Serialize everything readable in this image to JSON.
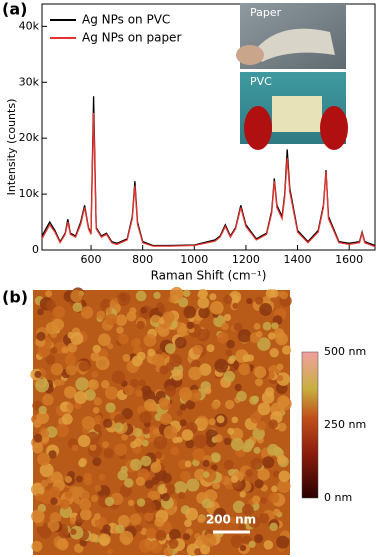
{
  "panel_labels": [
    "(a)",
    "(b)"
  ],
  "chart_data": {
    "type": "line",
    "x_label": "Raman Shift (cm⁻¹)",
    "y_label": "Intensity (counts)",
    "x": [
      410,
      440,
      460,
      480,
      500,
      510,
      520,
      540,
      560,
      575,
      590,
      600,
      610,
      620,
      640,
      660,
      680,
      700,
      740,
      760,
      770,
      780,
      800,
      840,
      900,
      1000,
      1080,
      1100,
      1120,
      1140,
      1160,
      1180,
      1200,
      1240,
      1280,
      1300,
      1310,
      1320,
      1340,
      1350,
      1360,
      1370,
      1400,
      1440,
      1480,
      1500,
      1510,
      1520,
      1560,
      1600,
      1640,
      1650,
      1660,
      1700
    ],
    "series": [
      {
        "name": "Ag NPs on PVC",
        "color": "#000000",
        "values": [
          2500,
          5000,
          3500,
          1500,
          3000,
          5500,
          3000,
          2500,
          5000,
          8000,
          4000,
          3000,
          27500,
          4000,
          2500,
          3000,
          1500,
          1200,
          2000,
          6000,
          12300,
          5000,
          1500,
          800,
          800,
          900,
          1800,
          2500,
          4500,
          2500,
          4000,
          8000,
          4500,
          2000,
          3000,
          7000,
          12800,
          8000,
          6000,
          10000,
          18000,
          11000,
          3500,
          1500,
          3500,
          8000,
          14300,
          6000,
          1500,
          1200,
          1500,
          3200,
          1500,
          800
        ]
      },
      {
        "name": "Ag NPs on paper",
        "color": "#e8332e",
        "values": [
          2000,
          4500,
          3200,
          1300,
          2800,
          5000,
          2800,
          2300,
          4600,
          7600,
          3800,
          2800,
          24500,
          3800,
          2300,
          2800,
          1300,
          1000,
          1800,
          5600,
          11500,
          4600,
          1300,
          700,
          700,
          800,
          1600,
          2300,
          4200,
          2300,
          3800,
          7600,
          4200,
          1800,
          2800,
          6600,
          12300,
          7600,
          5600,
          9400,
          16500,
          10400,
          3200,
          1300,
          3200,
          7600,
          14000,
          5600,
          1300,
          1000,
          1300,
          3000,
          1300,
          600
        ]
      }
    ],
    "xlim": [
      410,
      1700
    ],
    "xticks": [
      600,
      800,
      1000,
      1200,
      1400,
      1600
    ],
    "ylim": [
      0,
      44000
    ],
    "yticks": [
      0,
      {
        "value": 10000,
        "label": "10k"
      },
      {
        "value": 20000,
        "label": "20k"
      },
      {
        "value": 30000,
        "label": "30k"
      },
      {
        "value": 40000,
        "label": "40k"
      }
    ],
    "legend": "top-left"
  },
  "insets": [
    "Paper",
    "PVC"
  ],
  "afm": {
    "scale_bar": "200 nm",
    "colorbar": {
      "range": [
        0,
        500
      ],
      "ticks": [
        {
          "value": 0,
          "label": "0 nm"
        },
        {
          "value": 250,
          "label": "250 nm"
        },
        {
          "value": 500,
          "label": "500 nm"
        }
      ]
    }
  }
}
